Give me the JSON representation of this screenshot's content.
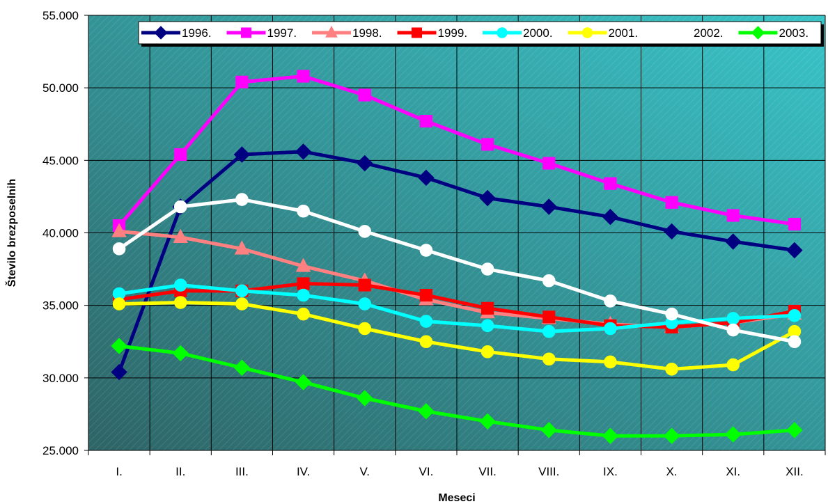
{
  "chart_data": {
    "type": "line",
    "title": "",
    "xlabel": "Meseci",
    "ylabel": "Število brezposelnih",
    "categories": [
      "I.",
      "II.",
      "III.",
      "IV.",
      "V.",
      "VI.",
      "VII.",
      "VIII.",
      "IX.",
      "X.",
      "XI.",
      "XII."
    ],
    "y_ticks": [
      "25.000",
      "30.000",
      "35.000",
      "40.000",
      "45.000",
      "50.000",
      "55.000"
    ],
    "ylim": [
      25000,
      55000
    ],
    "grid": true,
    "legend_position": "top",
    "plot_background": [
      "#2e6466",
      "#38c4c8"
    ],
    "series": [
      {
        "name": "1996.",
        "color": "#000080",
        "marker": "diamond",
        "values": [
          30400,
          41800,
          45400,
          45600,
          44800,
          43800,
          42400,
          41800,
          41100,
          40100,
          39400,
          38800
        ]
      },
      {
        "name": "1997.",
        "color": "#ff00ff",
        "marker": "square",
        "values": [
          40500,
          45400,
          50400,
          50800,
          49500,
          47700,
          46100,
          44800,
          43400,
          42100,
          41200,
          40600
        ]
      },
      {
        "name": "1998.",
        "color": "#ff8080",
        "marker": "triangle",
        "values": [
          40100,
          39700,
          38900,
          37700,
          36700,
          35400,
          34500,
          34100,
          33700,
          33500,
          33800,
          34400
        ]
      },
      {
        "name": "1999.",
        "color": "#ff0000",
        "marker": "square",
        "values": [
          35400,
          36000,
          36000,
          36500,
          36400,
          35700,
          34800,
          34200,
          33600,
          33500,
          33800,
          34600
        ]
      },
      {
        "name": "2000.",
        "color": "#00ffff",
        "marker": "circle",
        "values": [
          35800,
          36400,
          36000,
          35700,
          35100,
          33900,
          33600,
          33200,
          33400,
          33800,
          34100,
          34300
        ]
      },
      {
        "name": "2001.",
        "color": "#ffff00",
        "marker": "circle",
        "values": [
          35100,
          35200,
          35100,
          34400,
          33400,
          32500,
          31800,
          31300,
          31100,
          30600,
          30900,
          33200
        ]
      },
      {
        "name": "2002.",
        "color": "#ffffff",
        "marker": "circle",
        "values": [
          38900,
          41800,
          42300,
          41500,
          40100,
          38800,
          37500,
          36700,
          35300,
          34400,
          33300,
          32500
        ]
      },
      {
        "name": "2003.",
        "color": "#00ff00",
        "marker": "diamond",
        "values": [
          32200,
          31700,
          30700,
          29700,
          28600,
          27700,
          27000,
          26400,
          26000,
          26000,
          26100,
          26400
        ]
      }
    ]
  }
}
